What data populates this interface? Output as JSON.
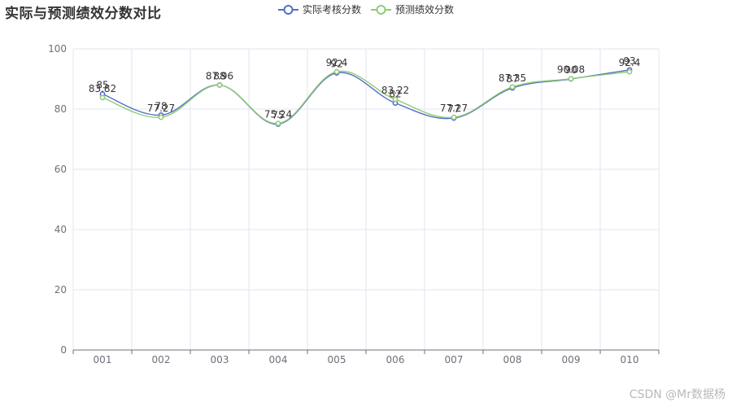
{
  "page": {
    "watermark": "CSDN @Mr数据杨"
  },
  "chart_data": {
    "type": "line",
    "title": "实际与预测绩效分数对比",
    "categories": [
      "001",
      "002",
      "003",
      "004",
      "005",
      "006",
      "007",
      "008",
      "009",
      "010"
    ],
    "ylim": [
      0,
      100
    ],
    "yticks": [
      0,
      20,
      40,
      60,
      80,
      100
    ],
    "grid": true,
    "smooth": true,
    "legend_position": "top-center",
    "series": [
      {
        "name": "实际考核分数",
        "color": "#5470c6",
        "values": [
          85,
          78,
          88,
          75,
          92,
          82,
          77,
          87,
          90,
          93
        ],
        "labels": [
          "85",
          "78",
          "88",
          "75",
          "92",
          "82",
          "77",
          "87",
          "90",
          "93"
        ]
      },
      {
        "name": "预测绩效分数",
        "color": "#91cc75",
        "values": [
          83.82,
          77.27,
          87.96,
          75.24,
          92.4,
          83.22,
          77.27,
          87.35,
          90.08,
          92.4
        ],
        "labels": [
          "83.82",
          "77.27",
          "87.96",
          "75.24",
          "92.4",
          "83.22",
          "77.27",
          "87.35",
          "90.08",
          "92.4"
        ]
      }
    ]
  }
}
